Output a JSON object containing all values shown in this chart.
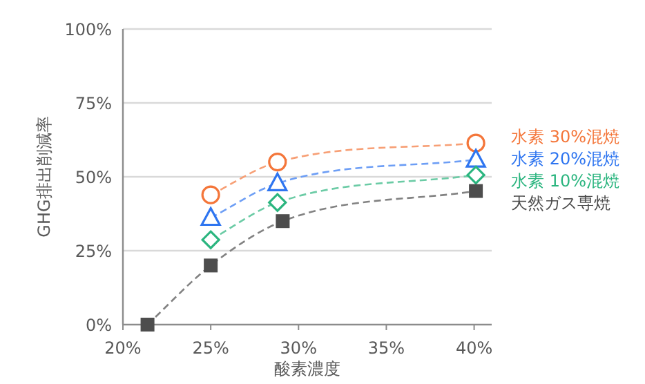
{
  "chart_data": {
    "type": "line",
    "xlabel": "酸素濃度",
    "ylabel": "GHG排出削減率",
    "xlim": [
      20,
      41
    ],
    "ylim": [
      0,
      100
    ],
    "xticks": [
      {
        "value": 20,
        "label": "20%"
      },
      {
        "value": 25,
        "label": "25%"
      },
      {
        "value": 30,
        "label": "30%"
      },
      {
        "value": 35,
        "label": "35%"
      },
      {
        "value": 40,
        "label": "40%"
      }
    ],
    "yticks": [
      {
        "value": 0,
        "label": "0%"
      },
      {
        "value": 25,
        "label": "25%"
      },
      {
        "value": 50,
        "label": "50%"
      },
      {
        "value": 75,
        "label": "75%"
      },
      {
        "value": 100,
        "label": "100%"
      }
    ],
    "grid": "y",
    "legend": "right",
    "line_style": "dashed",
    "series": [
      {
        "name": "水素 30%混焼",
        "color": "#f4763a",
        "marker": "circle",
        "x": [
          25,
          28.8,
          40.1
        ],
        "values": [
          43.9,
          55.0,
          61.4
        ]
      },
      {
        "name": "水素 20%混焼",
        "color": "#2e75f0",
        "marker": "triangle",
        "x": [
          25,
          28.8,
          40.1
        ],
        "values": [
          36.1,
          47.8,
          55.8
        ]
      },
      {
        "name": "水素 10%混焼",
        "color": "#2bb57f",
        "marker": "diamond",
        "x": [
          25,
          28.8,
          40.1
        ],
        "values": [
          28.7,
          41.3,
          50.6
        ]
      },
      {
        "name": "天然ガス専焼",
        "color": "#4d4d4d",
        "marker": "square",
        "x": [
          21.4,
          25,
          29.1,
          40.1
        ],
        "values": [
          0,
          20,
          35,
          45.2
        ]
      }
    ]
  }
}
